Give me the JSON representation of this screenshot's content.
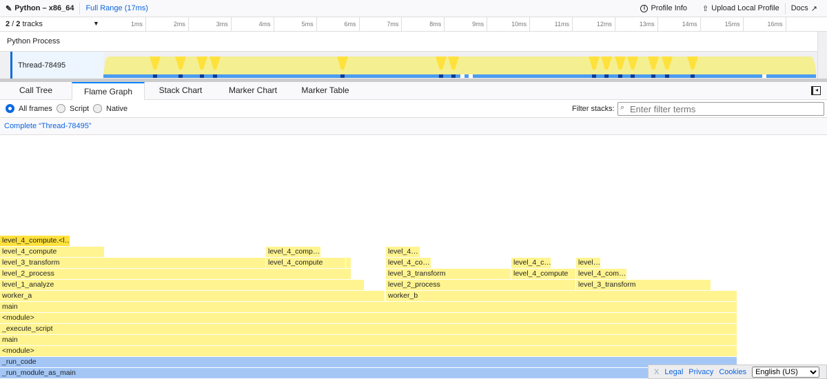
{
  "topbar": {
    "profile_name": "Python – x86_64",
    "range": "Full Range (17ms)",
    "profile_info": "Profile Info",
    "upload": "Upload Local Profile",
    "docs": "Docs"
  },
  "tracks": {
    "visible": "2",
    "total": "2",
    "label": "tracks",
    "ticks": [
      "1ms",
      "2ms",
      "3ms",
      "4ms",
      "5ms",
      "6ms",
      "7ms",
      "8ms",
      "9ms",
      "10ms",
      "11ms",
      "12ms",
      "13ms",
      "14ms",
      "15ms",
      "16ms"
    ],
    "process": "Python Process",
    "thread": "Thread-78495"
  },
  "tabs": [
    "Call Tree",
    "Flame Graph",
    "Stack Chart",
    "Marker Chart",
    "Marker Table"
  ],
  "selected_tab": "Flame Graph",
  "options": {
    "radios": [
      "All frames",
      "Script",
      "Native"
    ],
    "selected": "All frames",
    "filter_label": "Filter stacks:",
    "filter_placeholder": "Enter filter terms"
  },
  "breadcrumb": "Complete “Thread-78495”",
  "frames": [
    "_run_module_as_main",
    "_run_code",
    "<module>",
    "main",
    "_execute_script",
    "<module>",
    "main",
    "worker_a",
    "worker_b",
    "level_1_analyze",
    "level_2_process",
    "level_3_transform",
    "level_2_process",
    "level_3_transform",
    "level_4_compute",
    "level_4_com…",
    "level_3_transform",
    "level_4_compute",
    "",
    "level_4_co…",
    "level_4_c…",
    "level…",
    "level_4_compute",
    "level_4_comp…",
    "level_4…",
    "level_4_compute.<l…"
  ],
  "colors": {
    "js_frame": "#fff490",
    "native_frame": "#a3c6f5",
    "selected_frame": "#ffe13c",
    "accent": "#0a6ae0"
  },
  "footer": {
    "close": "X",
    "legal": "Legal",
    "privacy": "Privacy",
    "cookies": "Cookies",
    "language": "English (US)"
  }
}
